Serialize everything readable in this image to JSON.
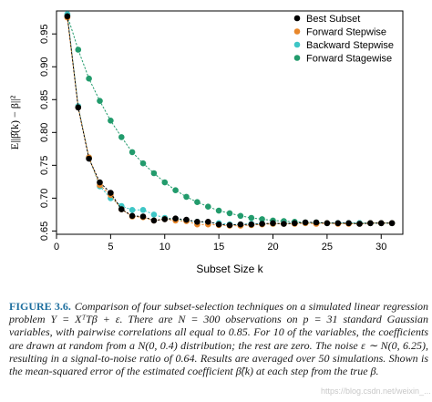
{
  "chart_data": {
    "type": "scatter",
    "title": "",
    "xlabel": "Subset Size k",
    "ylabel": "E||β̂(k) − β||²",
    "xlim": [
      0,
      32
    ],
    "ylim": [
      0.645,
      0.985
    ],
    "xticks": [
      0,
      5,
      10,
      15,
      20,
      25,
      30
    ],
    "yticks": [
      0.65,
      0.7,
      0.75,
      0.8,
      0.85,
      0.9,
      0.95
    ],
    "legend_position": "top-right",
    "series": [
      {
        "name": "Best Subset",
        "color": "#000000",
        "x": [
          1,
          2,
          3,
          4,
          5,
          6,
          7,
          8,
          9,
          10,
          11,
          12,
          13,
          14,
          15,
          16,
          17,
          18,
          19,
          20,
          21,
          22,
          23,
          24,
          25,
          26,
          27,
          28,
          29,
          30,
          31
        ],
        "y": [
          0.977,
          0.838,
          0.76,
          0.724,
          0.708,
          0.683,
          0.673,
          0.672,
          0.666,
          0.668,
          0.669,
          0.667,
          0.664,
          0.664,
          0.66,
          0.659,
          0.66,
          0.66,
          0.661,
          0.662,
          0.661,
          0.662,
          0.663,
          0.663,
          0.662,
          0.662,
          0.662,
          0.661,
          0.662,
          0.662,
          0.662
        ]
      },
      {
        "name": "Forward Stepwise",
        "color": "#e8872b",
        "x": [
          1,
          2,
          3,
          4,
          5,
          6,
          7,
          8,
          9,
          10,
          11,
          12,
          13,
          14,
          15,
          16,
          17,
          18,
          19,
          20,
          21,
          22,
          23,
          24,
          25,
          26,
          27,
          28,
          29,
          30,
          31
        ],
        "y": [
          0.975,
          0.838,
          0.762,
          0.72,
          0.705,
          0.683,
          0.672,
          0.671,
          0.666,
          0.668,
          0.666,
          0.665,
          0.66,
          0.66,
          0.659,
          0.658,
          0.658,
          0.659,
          0.66,
          0.661,
          0.661,
          0.661,
          0.662,
          0.661,
          0.662,
          0.661,
          0.661,
          0.661,
          0.662,
          0.662,
          0.662
        ]
      },
      {
        "name": "Backward Stepwise",
        "color": "#3ec6c6",
        "x": [
          1,
          2,
          3,
          4,
          5,
          6,
          7,
          8,
          9,
          10,
          11,
          12,
          13,
          14,
          15,
          16,
          17,
          18,
          19,
          20,
          21,
          22,
          23,
          24,
          25,
          26,
          27,
          28,
          29,
          30,
          31
        ],
        "y": [
          0.98,
          0.84,
          0.762,
          0.718,
          0.7,
          0.688,
          0.682,
          0.682,
          0.675,
          0.67,
          0.668,
          0.666,
          0.664,
          0.663,
          0.662,
          0.66,
          0.66,
          0.661,
          0.661,
          0.661,
          0.662,
          0.662,
          0.662,
          0.662,
          0.662,
          0.662,
          0.662,
          0.662,
          0.662,
          0.662,
          0.662
        ]
      },
      {
        "name": "Forward Stagewise",
        "color": "#229b6c",
        "x": [
          1,
          2,
          3,
          4,
          5,
          6,
          7,
          8,
          9,
          10,
          11,
          12,
          13,
          14,
          15,
          16,
          17,
          18,
          19,
          20,
          21,
          22,
          23,
          24,
          25,
          26,
          27,
          28,
          29,
          30,
          31
        ],
        "y": [
          0.978,
          0.926,
          0.882,
          0.848,
          0.818,
          0.793,
          0.77,
          0.753,
          0.738,
          0.724,
          0.712,
          0.702,
          0.694,
          0.687,
          0.681,
          0.677,
          0.673,
          0.67,
          0.668,
          0.666,
          0.665,
          0.664,
          0.663,
          0.663,
          0.662,
          0.662,
          0.662,
          0.662,
          0.662,
          0.662,
          0.662
        ]
      }
    ]
  },
  "caption": {
    "label": "FIGURE 3.6.",
    "text": "Comparison of four subset-selection techniques on a simulated linear regression problem Y = XᵀTβ + ε. There are N = 300 observations on p = 31 standard Gaussian variables, with pairwise correlations all equal to 0.85. For 10 of the variables, the coefficients are drawn at random from a N(0, 0.4) distribution; the rest are zero. The noise ε ∼ N(0, 6.25), resulting in a signal-to-noise ratio of 0.64. Results are averaged over 50 simulations. Shown is the mean-squared error of the estimated coefficient β̂(k) at each step from the true β."
  },
  "watermark": "https://blog.csdn.net/weixin_..."
}
